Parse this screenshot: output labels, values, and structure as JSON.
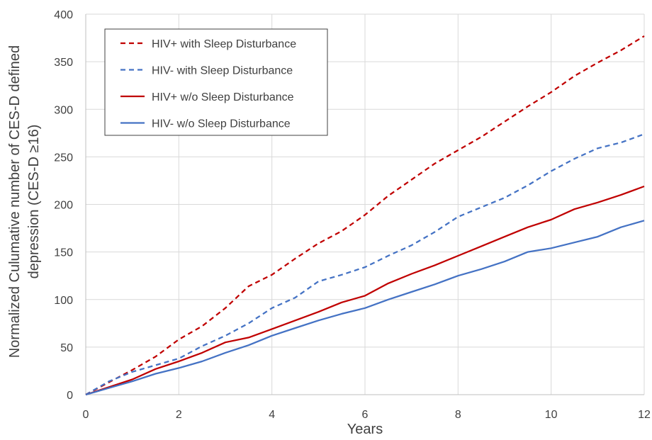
{
  "chart_data": {
    "type": "line",
    "title": "",
    "xlabel": "Years",
    "ylabel_lines": [
      "Normalized Culumative number of CES-D defined",
      "depression (CES-D ≥16)"
    ],
    "xlim": [
      0,
      12
    ],
    "ylim": [
      0,
      400
    ],
    "xticks": [
      0,
      2,
      4,
      6,
      8,
      10,
      12
    ],
    "yticks": [
      0,
      50,
      100,
      150,
      200,
      250,
      300,
      350,
      400
    ],
    "grid": true,
    "legend_position": "top-left",
    "x": [
      0,
      0.5,
      1,
      1.5,
      2,
      2.5,
      3,
      3.5,
      4,
      4.5,
      5,
      5.5,
      6,
      6.5,
      7,
      7.5,
      8,
      8.5,
      9,
      9.5,
      10,
      10.5,
      11,
      11.5,
      12
    ],
    "series": [
      {
        "name": "HIV+ with Sleep Disturbance",
        "color": "#C00000",
        "dash": "dashed",
        "values": [
          0,
          13,
          26,
          40,
          58,
          72,
          91,
          114,
          126,
          143,
          159,
          172,
          189,
          209,
          226,
          243,
          257,
          271,
          287,
          303,
          318,
          335,
          349,
          362,
          377
        ]
      },
      {
        "name": "HIV- with Sleep Disturbance",
        "color": "#4472C4",
        "dash": "dashed",
        "values": [
          0,
          14,
          24,
          31,
          38,
          51,
          62,
          75,
          91,
          102,
          119,
          126,
          134,
          146,
          157,
          171,
          187,
          197,
          207,
          220,
          235,
          248,
          259,
          265,
          274
        ]
      },
      {
        "name": "HIV+ w/o Sleep Disturbance",
        "color": "#C00000",
        "dash": "solid",
        "values": [
          0,
          8,
          16,
          27,
          35,
          44,
          55,
          60,
          69,
          78,
          87,
          97,
          104,
          117,
          127,
          136,
          146,
          156,
          166,
          176,
          184,
          195,
          202,
          210,
          219
        ]
      },
      {
        "name": "HIV- w/o Sleep Disturbance",
        "color": "#4472C4",
        "dash": "solid",
        "values": [
          0,
          7,
          14,
          22,
          28,
          35,
          44,
          52,
          62,
          70,
          78,
          85,
          91,
          100,
          108,
          116,
          125,
          132,
          140,
          150,
          154,
          160,
          166,
          176,
          183
        ]
      }
    ]
  }
}
